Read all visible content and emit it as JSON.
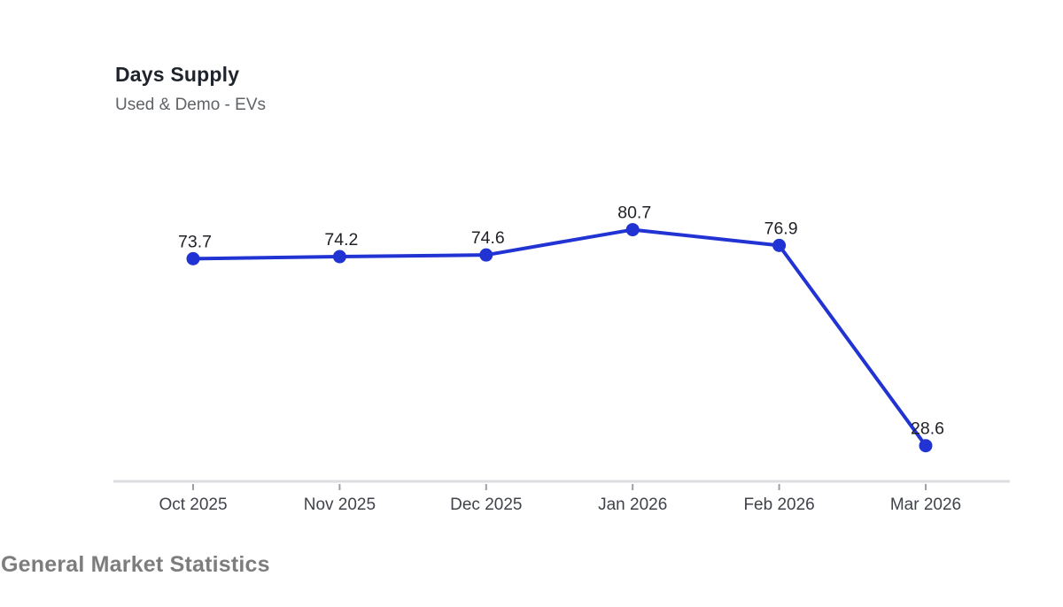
{
  "page": {
    "background_color": "#ffffff"
  },
  "chart": {
    "title": "Days Supply",
    "subtitle": "Used & Demo - EVs"
  },
  "footer": {
    "heading": "General Market Statistics"
  },
  "chart_data": {
    "type": "line",
    "title": "Days Supply",
    "subtitle": "Used & Demo - EVs",
    "categories": [
      "Oct 2025",
      "Nov 2025",
      "Dec 2025",
      "Jan 2026",
      "Feb 2026",
      "Mar 2026"
    ],
    "series": [
      {
        "name": "Days Supply",
        "values": [
          73.7,
          74.2,
          74.6,
          80.7,
          76.9,
          28.6
        ]
      }
    ],
    "data_labels": [
      "73.7",
      "74.2",
      "74.6",
      "80.7",
      "76.9",
      "28.6"
    ],
    "xlabel": "",
    "ylabel": "",
    "ylim": [
      20,
      90
    ],
    "grid": false,
    "legend": "none",
    "y_axis_visible": false,
    "colors": {
      "line": "#2133d2",
      "marker": "#2133d2",
      "axis_line": "#dcdee2",
      "tick": "#9aa0a6",
      "value_label": "#1f2126",
      "category_label": "#404349"
    }
  }
}
